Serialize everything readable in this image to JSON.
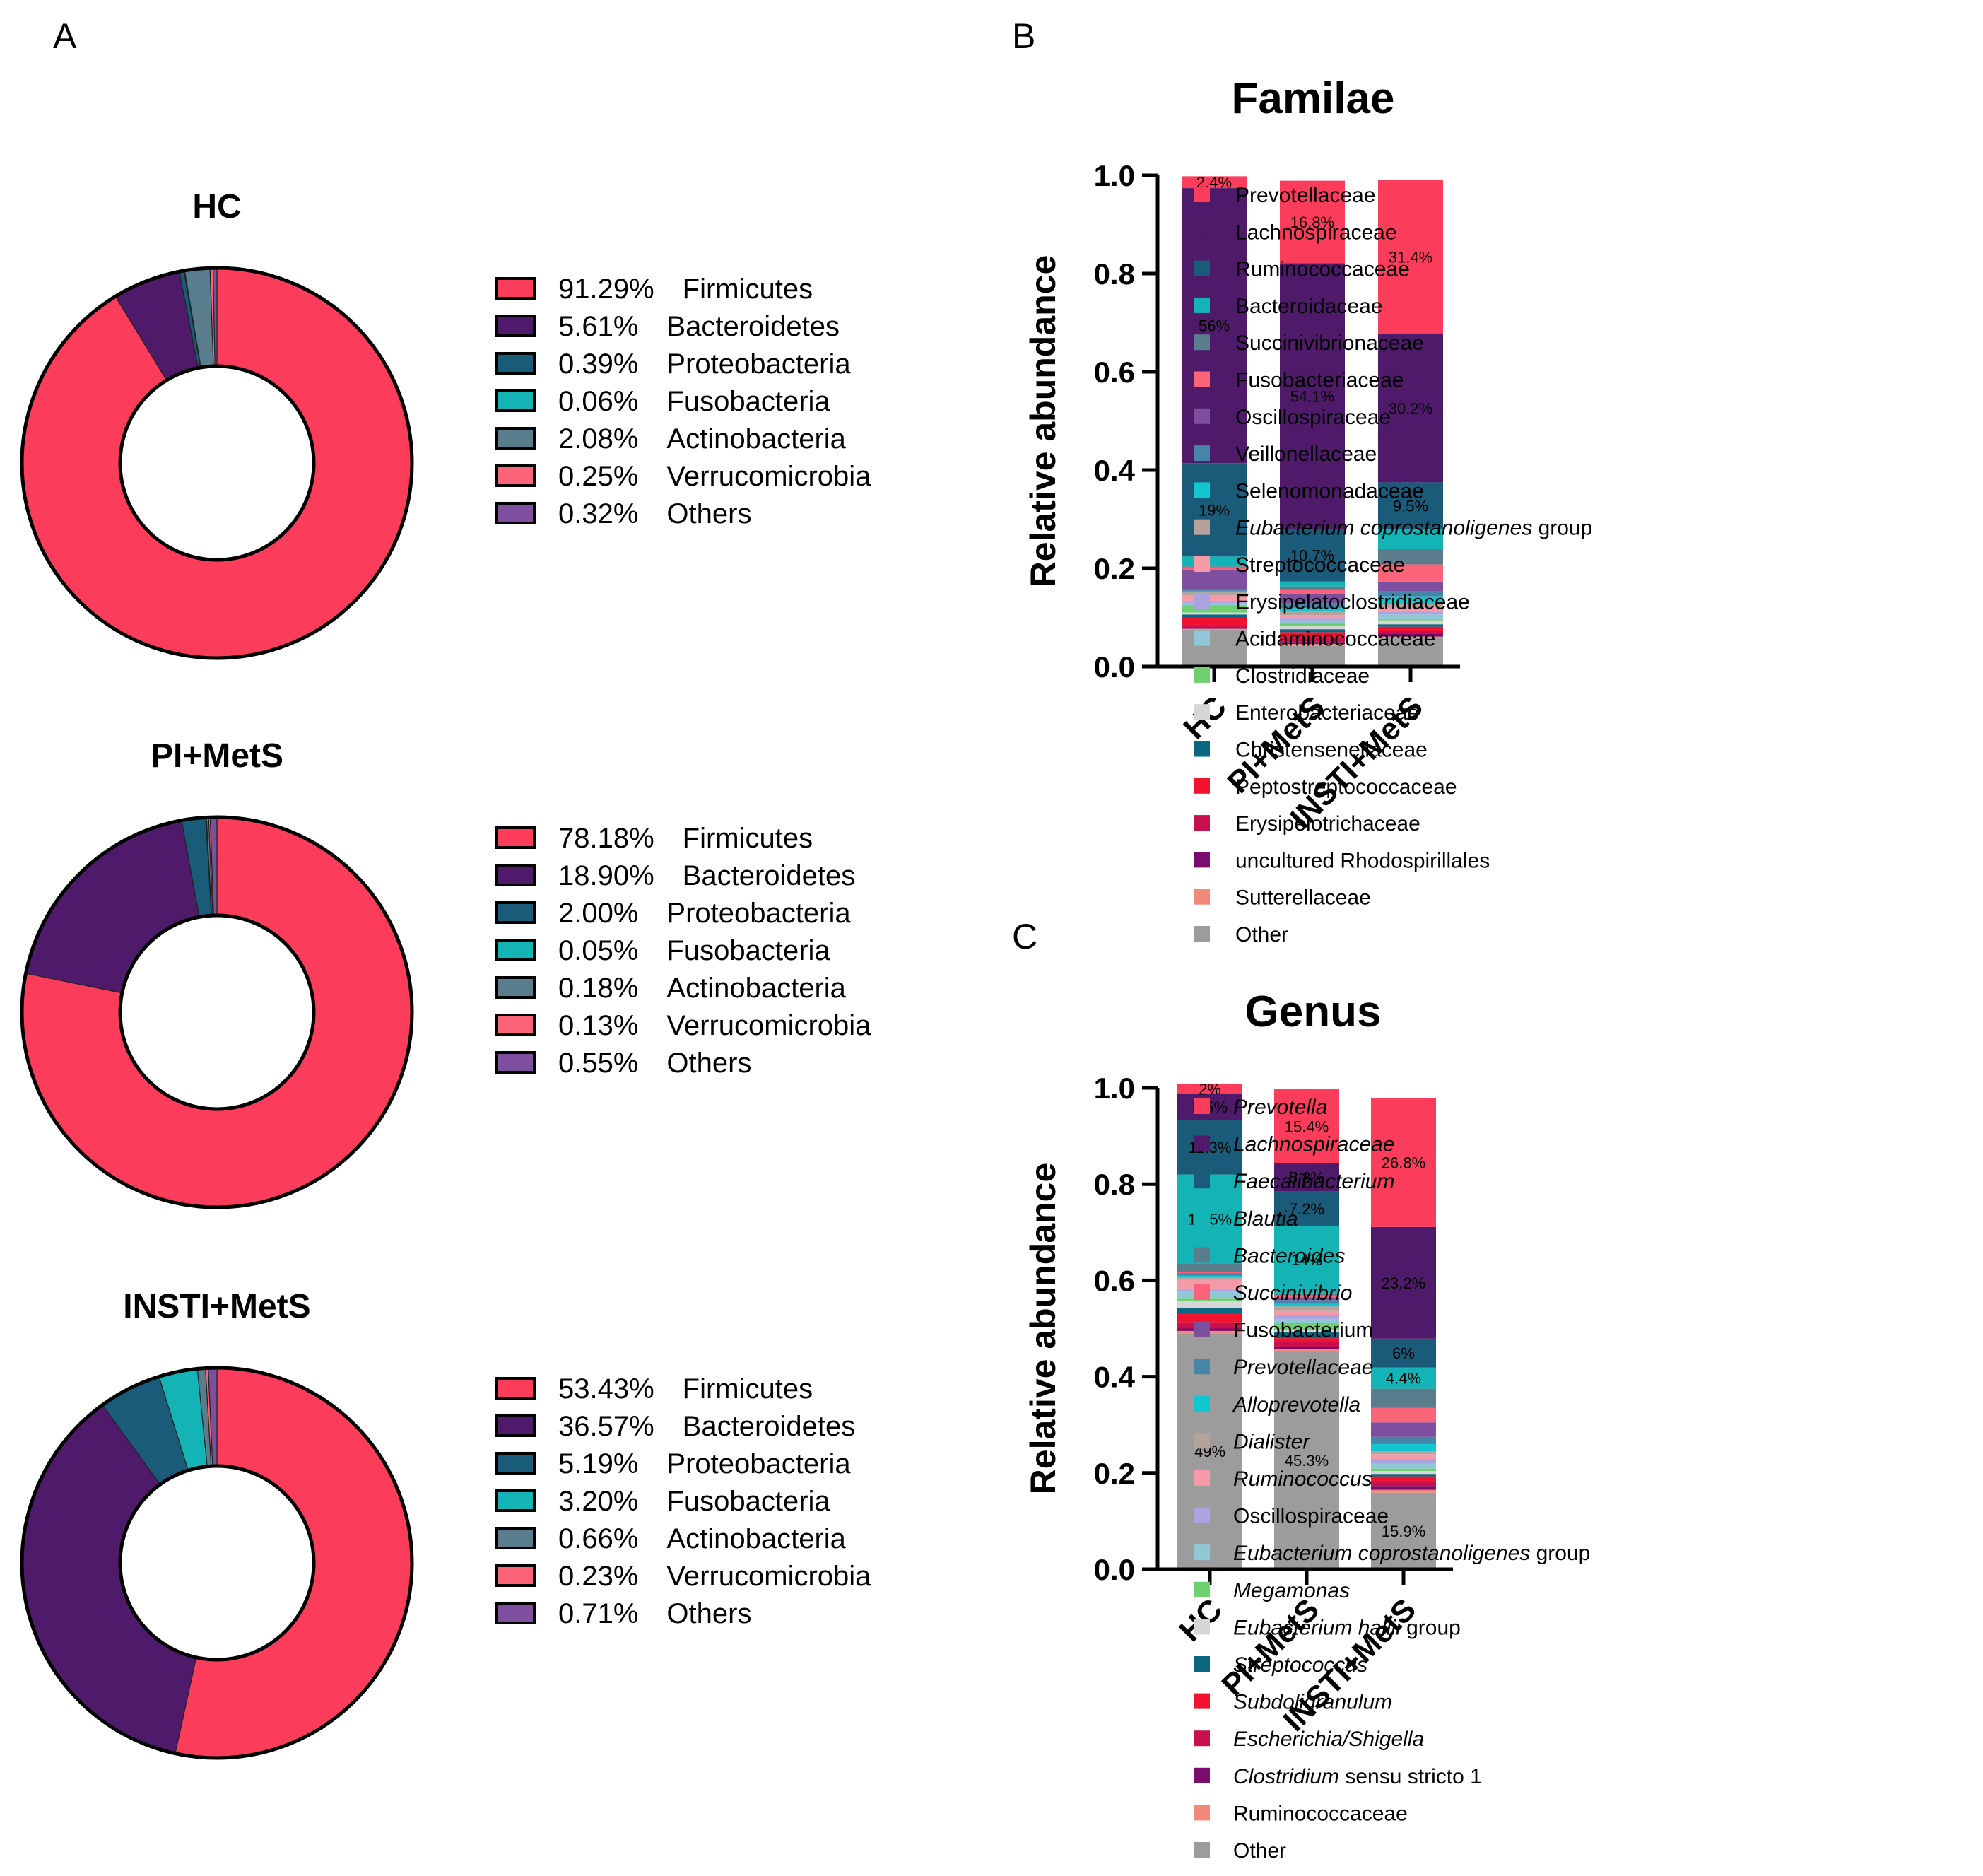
{
  "panel_labels": [
    "A",
    "B",
    "C"
  ],
  "chart_data": [
    {
      "type": "pie",
      "subtype": "donut",
      "panel": "A",
      "title": "HC",
      "categories": [
        "Firmicutes",
        "Bacteroidetes",
        "Proteobacteria",
        "Fusobacteria",
        "Actinobacteria",
        "Verrucomicrobia",
        "Others"
      ],
      "values": [
        91.29,
        5.61,
        0.39,
        0.06,
        2.08,
        0.25,
        0.32
      ],
      "value_labels": [
        "91.29%",
        "5.61%",
        "0.39%",
        "0.06%",
        "2.08%",
        "0.25%",
        "0.32%"
      ],
      "colors": [
        "#fb3d5b",
        "#4e1a69",
        "#1a5b7a",
        "#14b4b6",
        "#5a7d8e",
        "#fb6478",
        "#7e4f9e"
      ]
    },
    {
      "type": "pie",
      "subtype": "donut",
      "panel": "A",
      "title": "PI+MetS",
      "categories": [
        "Firmicutes",
        "Bacteroidetes",
        "Proteobacteria",
        "Fusobacteria",
        "Actinobacteria",
        "Verrucomicrobia",
        "Others"
      ],
      "values": [
        78.18,
        18.9,
        2.0,
        0.05,
        0.18,
        0.13,
        0.55
      ],
      "value_labels": [
        "78.18%",
        "18.90%",
        "2.00%",
        "0.05%",
        "0.18%",
        "0.13%",
        "0.55%"
      ],
      "colors": [
        "#fb3d5b",
        "#4e1a69",
        "#1a5b7a",
        "#14b4b6",
        "#5a7d8e",
        "#fb6478",
        "#7e4f9e"
      ]
    },
    {
      "type": "pie",
      "subtype": "donut",
      "panel": "A",
      "title": "INSTI+MetS",
      "categories": [
        "Firmicutes",
        "Bacteroidetes",
        "Proteobacteria",
        "Fusobacteria",
        "Actinobacteria",
        "Verrucomicrobia",
        "Others"
      ],
      "values": [
        53.43,
        36.57,
        5.19,
        3.2,
        0.66,
        0.23,
        0.71
      ],
      "value_labels": [
        "53.43%",
        "36.57%",
        "5.19%",
        "3.20%",
        "0.66%",
        "0.23%",
        "0.71%"
      ],
      "colors": [
        "#fb3d5b",
        "#4e1a69",
        "#1a5b7a",
        "#14b4b6",
        "#5a7d8e",
        "#fb6478",
        "#7e4f9e"
      ]
    },
    {
      "type": "bar",
      "subtype": "stacked",
      "panel": "B",
      "title": "Familae",
      "ylabel": "Relative abundance",
      "ylim": [
        0,
        1.0
      ],
      "yticks": [
        "0.0",
        "0.2",
        "0.4",
        "0.6",
        "0.8",
        "1.0"
      ],
      "categories": [
        "HC",
        "PI+MetS",
        "INSTI+MetS"
      ],
      "series": [
        {
          "name": "Other",
          "color": "#9c9c9c",
          "values": [
            0.075,
            0.042,
            0.058
          ]
        },
        {
          "name": "Sutterellaceae",
          "color": "#f1887a",
          "values": [
            0.002,
            0.004,
            0.003
          ]
        },
        {
          "name": "uncultured Rhodospirillales",
          "color": "#7a0c6e",
          "values": [
            0.002,
            0.004,
            0.006
          ]
        },
        {
          "name": "Erysipelotrichaceae",
          "color": "#c8104f",
          "values": [
            0.003,
            0.008,
            0.006
          ]
        },
        {
          "name": "Peptostreptococcaceae",
          "color": "#f2122f",
          "values": [
            0.018,
            0.012,
            0.008
          ]
        },
        {
          "name": "Christensenellaceae",
          "color": "#0b6680",
          "values": [
            0.006,
            0.006,
            0.005
          ]
        },
        {
          "name": "Enterobacteriaceae",
          "color": "#d6d6d6",
          "values": [
            0.004,
            0.006,
            0.008
          ]
        },
        {
          "name": "Clostridiaceae",
          "color": "#6fd06f",
          "values": [
            0.015,
            0.006,
            0.004
          ]
        },
        {
          "name": "Acidaminococcaceae",
          "color": "#8fc7d6",
          "values": [
            0.004,
            0.006,
            0.008
          ]
        },
        {
          "name": "Erysipelatoclostridiaceae",
          "color": "#a9a3e0",
          "values": [
            0.004,
            0.005,
            0.006
          ]
        },
        {
          "name": "Streptococcaceae",
          "color": "#f59aa8",
          "values": [
            0.012,
            0.006,
            0.008
          ]
        },
        {
          "name": "Eubacterium coprostanoligenes group",
          "italic_part": "Eubacterium coprostanoligenes",
          "color": "#b4a29b",
          "values": [
            0.006,
            0.008,
            0.008
          ]
        },
        {
          "name": "Selenomonadaceae",
          "color": "#11c6cf",
          "values": [
            0.003,
            0.006,
            0.015
          ]
        },
        {
          "name": "Veillonellaceae",
          "color": "#4585a8",
          "values": [
            0.003,
            0.01,
            0.01
          ]
        },
        {
          "name": "Oscillospiraceae",
          "color": "#7e4f9e",
          "values": [
            0.04,
            0.018,
            0.02
          ]
        },
        {
          "name": "Fusobacteriaceae",
          "color": "#fb6478",
          "values": [
            0.005,
            0.01,
            0.035
          ]
        },
        {
          "name": "Succinivibrionaceae",
          "color": "#5a7d8e",
          "values": [
            0.002,
            0.006,
            0.032
          ]
        },
        {
          "name": "Bacteroidaceae",
          "color": "#14b4b6",
          "values": [
            0.02,
            0.01,
            0.04
          ]
        },
        {
          "name": "Ruminococcaceae",
          "color": "#1a5b7a",
          "values": [
            0.19,
            0.107,
            0.095
          ]
        },
        {
          "name": "Lachnospiraceae",
          "color": "#4e1a69",
          "values": [
            0.56,
            0.541,
            0.302
          ]
        },
        {
          "name": "Prevotellaceae",
          "color": "#fb3d5b",
          "values": [
            0.024,
            0.168,
            0.314
          ]
        }
      ],
      "data_labels": [
        {
          "category": "HC",
          "series": "Prevotellaceae",
          "text": "2.4%"
        },
        {
          "category": "HC",
          "series": "Lachnospiraceae",
          "text": "56%"
        },
        {
          "category": "HC",
          "series": "Ruminococcaceae",
          "text": "19%"
        },
        {
          "category": "PI+MetS",
          "series": "Prevotellaceae",
          "text": "16.8%"
        },
        {
          "category": "PI+MetS",
          "series": "Lachnospiraceae",
          "text": "54.1%"
        },
        {
          "category": "PI+MetS",
          "series": "Ruminococcaceae",
          "text": "10.7%"
        },
        {
          "category": "INSTI+MetS",
          "series": "Prevotellaceae",
          "text": "31.4%"
        },
        {
          "category": "INSTI+MetS",
          "series": "Lachnospiraceae",
          "text": "30.2%"
        },
        {
          "category": "INSTI+MetS",
          "series": "Ruminococcaceae",
          "text": "9.5%"
        }
      ]
    },
    {
      "type": "bar",
      "subtype": "stacked",
      "panel": "C",
      "title": "Genus",
      "ylabel": "Relative abundance",
      "ylim": [
        0,
        1.0
      ],
      "yticks": [
        "0.0",
        "0.2",
        "0.4",
        "0.6",
        "0.8",
        "1.0"
      ],
      "categories": [
        "HC",
        "PI+MetS",
        "INSTI+MetS"
      ],
      "series": [
        {
          "name": "Other",
          "color": "#9c9c9c",
          "values": [
            0.49,
            0.453,
            0.159
          ]
        },
        {
          "name": "Ruminococcaceae",
          "color": "#f1887a",
          "values": [
            0.005,
            0.005,
            0.006
          ]
        },
        {
          "name": "Clostridium sensu stricto 1",
          "italic_part": "Clostridium",
          "color": "#7a0c6e",
          "values": [
            0.005,
            0.004,
            0.008
          ]
        },
        {
          "name": "Escherichia/Shigella",
          "italic_part": "Escherichia/Shigella",
          "color": "#c8104f",
          "values": [
            0.013,
            0.01,
            0.008
          ]
        },
        {
          "name": "Subdoligranulum",
          "italic_part": "Subdoligranulum",
          "color": "#f2122f",
          "values": [
            0.02,
            0.008,
            0.012
          ]
        },
        {
          "name": "Streptococcus",
          "italic_part": "Streptococcus",
          "color": "#0b6680",
          "values": [
            0.01,
            0.012,
            0.005
          ]
        },
        {
          "name": "Eubacterium hallii group",
          "italic_part": "Eubacterium hallii",
          "color": "#d6d6d6",
          "values": [
            0.015,
            0.005,
            0.006
          ]
        },
        {
          "name": "Megamonas",
          "italic_part": "Megamonas",
          "color": "#6fd06f",
          "values": [
            0.004,
            0.015,
            0.005
          ]
        },
        {
          "name": "Eubacterium coprostanoligenes group",
          "italic_part": "Eubacterium coprostanoligenes",
          "color": "#8fc7d6",
          "values": [
            0.015,
            0.008,
            0.01
          ]
        },
        {
          "name": "Oscillospiraceae",
          "color": "#a9a3e0",
          "values": [
            0.004,
            0.008,
            0.01
          ]
        },
        {
          "name": "Ruminococcus",
          "italic_part": "Ruminococcus",
          "color": "#f59aa8",
          "values": [
            0.02,
            0.01,
            0.01
          ]
        },
        {
          "name": "Dialister",
          "italic_part": "Dialister",
          "color": "#b4a29b",
          "values": [
            0.006,
            0.008,
            0.006
          ]
        },
        {
          "name": "Alloprevotella",
          "italic_part": "Alloprevotella",
          "color": "#11c6cf",
          "values": [
            0.003,
            0.005,
            0.015
          ]
        },
        {
          "name": "Prevotellaceae",
          "italic_part": "Prevotellaceae",
          "color": "#4585a8",
          "values": [
            0.003,
            0.008,
            0.015
          ]
        },
        {
          "name": "Fusobacterium",
          "color": "#7e4f9e",
          "values": [
            0.002,
            0.006,
            0.03
          ]
        },
        {
          "name": "Succinivibrio",
          "italic_part": "Succinivibrio",
          "color": "#fb6478",
          "values": [
            0.002,
            0.004,
            0.03
          ]
        },
        {
          "name": "Bacteroides",
          "italic_part": "Bacteroides",
          "color": "#5a7d8e",
          "values": [
            0.018,
            0.004,
            0.04
          ]
        },
        {
          "name": "Blautia",
          "italic_part": "Blautia",
          "color": "#14b4b6",
          "values": [
            0.185,
            0.14,
            0.044
          ]
        },
        {
          "name": "Faecalibacterium",
          "italic_part": "Faecalibacterium",
          "color": "#1a5b7a",
          "values": [
            0.113,
            0.072,
            0.06
          ]
        },
        {
          "name": "Lachnospiraceae",
          "italic_part": "Lachnospiraceae",
          "color": "#4e1a69",
          "values": [
            0.055,
            0.058,
            0.232
          ]
        },
        {
          "name": "Prevotella",
          "italic_part": "Prevotella",
          "color": "#fb3d5b",
          "values": [
            0.02,
            0.154,
            0.268
          ]
        }
      ],
      "data_labels": [
        {
          "category": "HC",
          "series": "Prevotella",
          "text": "2%"
        },
        {
          "category": "HC",
          "series": "Lachnospiraceae",
          "text": "5.5%"
        },
        {
          "category": "HC",
          "series": "Faecalibacterium",
          "text": "11.3%"
        },
        {
          "category": "HC",
          "series": "Blautia",
          "text": "18.5%"
        },
        {
          "category": "HC",
          "series": "Other",
          "text": "49%"
        },
        {
          "category": "PI+MetS",
          "series": "Prevotella",
          "text": "15.4%"
        },
        {
          "category": "PI+MetS",
          "series": "Lachnospiraceae",
          "text": "5.8%"
        },
        {
          "category": "PI+MetS",
          "series": "Faecalibacterium",
          "text": "7.2%"
        },
        {
          "category": "PI+MetS",
          "series": "Blautia",
          "text": "14%"
        },
        {
          "category": "PI+MetS",
          "series": "Other",
          "text": "45.3%"
        },
        {
          "category": "INSTI+MetS",
          "series": "Prevotella",
          "text": "26.8%"
        },
        {
          "category": "INSTI+MetS",
          "series": "Lachnospiraceae",
          "text": "23.2%"
        },
        {
          "category": "INSTI+MetS",
          "series": "Faecalibacterium",
          "text": "6%"
        },
        {
          "category": "INSTI+MetS",
          "series": "Blautia",
          "text": "4.4%"
        },
        {
          "category": "INSTI+MetS",
          "series": "Other",
          "text": "15.9%"
        }
      ]
    }
  ]
}
